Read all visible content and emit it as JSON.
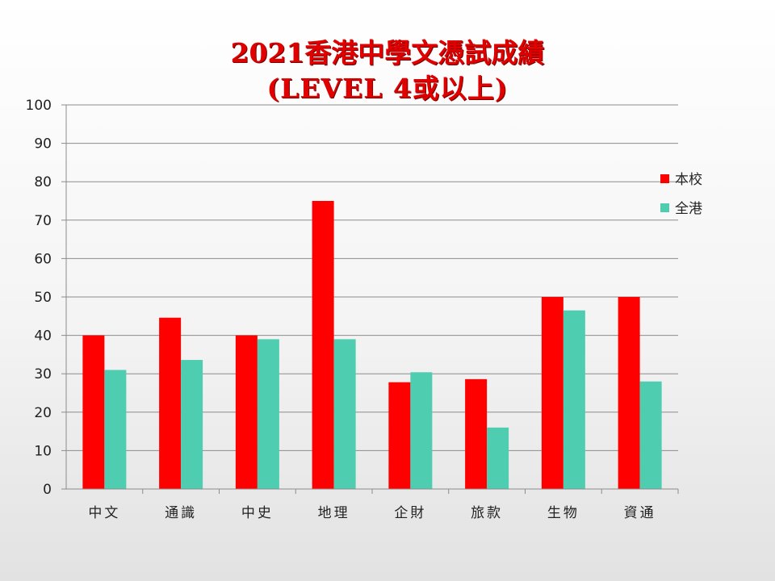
{
  "slide": {
    "title_line1": "2021香港中學文憑試成績",
    "title_line2": "(LEVEL 4或以上)"
  },
  "chart_data": {
    "type": "bar",
    "title": "2021香港中學文憑試成績 (LEVEL 4或以上)",
    "categories": [
      "中文",
      "通識",
      "中史",
      "地理",
      "企財",
      "旅款",
      "生物",
      "資通"
    ],
    "series": [
      {
        "name": "本校",
        "color": "#ff0000",
        "values": [
          40,
          44.6,
          40,
          75,
          27.8,
          28.6,
          50,
          50
        ]
      },
      {
        "name": "全港",
        "color": "#4ecdb0",
        "values": [
          31,
          33.6,
          39,
          39,
          30.4,
          16,
          46.5,
          28
        ]
      }
    ],
    "ylim": [
      0,
      100
    ],
    "yticks": [
      0,
      10,
      20,
      30,
      40,
      50,
      60,
      70,
      80,
      90,
      100
    ],
    "grid": true,
    "legend_position": "right",
    "xlabel": "",
    "ylabel": ""
  }
}
